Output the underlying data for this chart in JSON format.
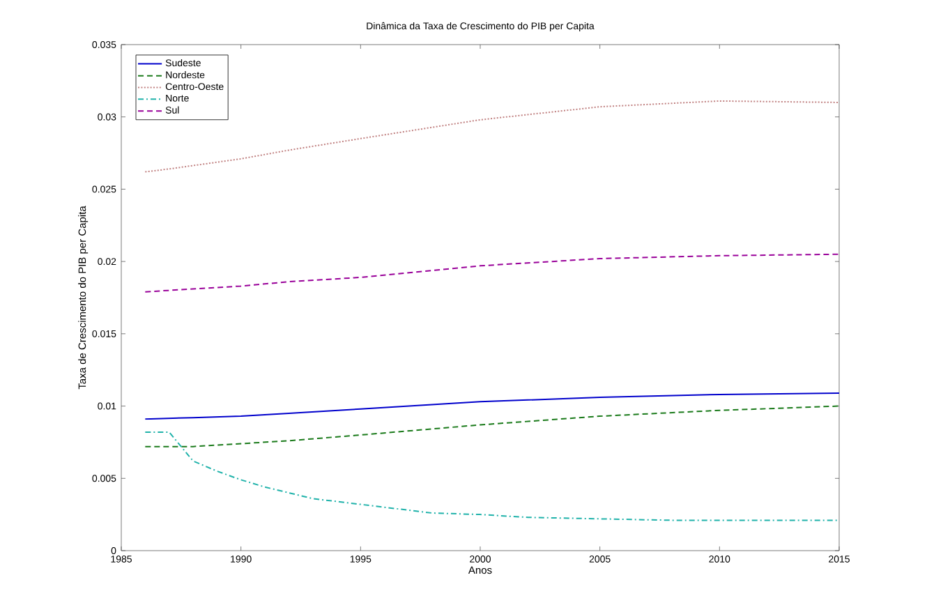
{
  "chart_data": {
    "type": "line",
    "title": "Dinâmica da Taxa de Crescimento do PIB per Capita",
    "xlabel": "Anos",
    "ylabel": "Taxa de Crescimento do PIB per Capita",
    "xlim": [
      1985,
      2015
    ],
    "xticks": [
      1985,
      1990,
      1995,
      2000,
      2005,
      2010,
      2015
    ],
    "ylim": [
      0,
      0.035
    ],
    "yticks": [
      0,
      0.005,
      0.01,
      0.015,
      0.02,
      0.025,
      0.03,
      0.035
    ],
    "legend": "top left",
    "grid": false,
    "marker": "none",
    "series": [
      {
        "name": "Sudeste",
        "color": "#0000cc",
        "line_style": "solid",
        "x": [
          1986,
          1988,
          1990,
          1992,
          1995,
          2000,
          2005,
          2010,
          2015
        ],
        "values": [
          0.0091,
          0.0092,
          0.0093,
          0.0095,
          0.0098,
          0.0103,
          0.0106,
          0.0108,
          0.0109
        ]
      },
      {
        "name": "Nordeste",
        "color": "#1a7a1a",
        "line_style": "dashed",
        "x": [
          1986,
          1988,
          1990,
          1992,
          1995,
          2000,
          2005,
          2010,
          2015
        ],
        "values": [
          0.0072,
          0.0072,
          0.0074,
          0.0076,
          0.008,
          0.0087,
          0.0093,
          0.0097,
          0.01
        ]
      },
      {
        "name": "Centro-Oeste",
        "color": "#c08080",
        "line_style": "dotted",
        "x": [
          1986,
          1987,
          1990,
          1992,
          1995,
          2000,
          2005,
          2010,
          2015
        ],
        "values": [
          0.0262,
          0.0264,
          0.0271,
          0.0277,
          0.0285,
          0.0298,
          0.0307,
          0.0311,
          0.031
        ]
      },
      {
        "name": "Norte",
        "color": "#20b2aa",
        "line_style": "dashdot",
        "x": [
          1986,
          1987,
          1988,
          1989,
          1990,
          1991,
          1992,
          1993,
          1994,
          1995,
          1996,
          1997,
          1998,
          2000,
          2002,
          2005,
          2008,
          2015
        ],
        "values": [
          0.0082,
          0.0082,
          0.0062,
          0.0055,
          0.0049,
          0.0044,
          0.004,
          0.0036,
          0.0034,
          0.0032,
          0.003,
          0.0028,
          0.0026,
          0.0025,
          0.0023,
          0.0022,
          0.0021,
          0.0021
        ]
      },
      {
        "name": "Sul",
        "color": "#990099",
        "line_style": "dashed",
        "x": [
          1986,
          1988,
          1990,
          1992,
          1995,
          2000,
          2005,
          2010,
          2015
        ],
        "values": [
          0.0179,
          0.0181,
          0.0183,
          0.0186,
          0.0189,
          0.0197,
          0.0202,
          0.0204,
          0.0205
        ]
      }
    ]
  }
}
